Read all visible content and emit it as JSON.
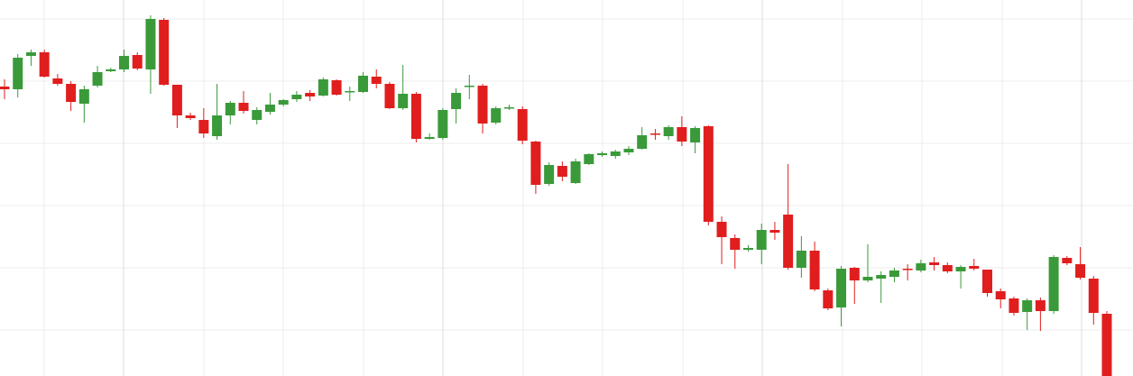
{
  "chart_data": {
    "type": "candlestick",
    "up_color": "#3a9a3a",
    "down_color": "#e01e1e",
    "ylim": [
      0,
      417
    ],
    "open": [
      321,
      318,
      355,
      359,
      330,
      324,
      302,
      322,
      338,
      340,
      356,
      340,
      395,
      323,
      289,
      284,
      266,
      289,
      303,
      284,
      293,
      301,
      307,
      314,
      311,
      328,
      315,
      315,
      332,
      324,
      297,
      313,
      263,
      264,
      296,
      321,
      322,
      281,
      297,
      296,
      260,
      213,
      233,
      214,
      235,
      245,
      244,
      248,
      252,
      269,
      266,
      276,
      259,
      277,
      171,
      153,
      140,
      140,
      162,
      179,
      120,
      139,
      95,
      76,
      120,
      106,
      108,
      110,
      119,
      117,
      126,
      123,
      116,
      122,
      118,
      94,
      86,
      71,
      84,
      72,
      131,
      124,
      108,
      69
    ],
    "high": [
      329,
      357,
      362,
      362,
      335,
      327,
      322,
      344,
      342,
      362,
      359,
      400,
      397,
      323,
      292,
      297,
      324,
      305,
      316,
      298,
      314,
      307,
      316,
      317,
      331,
      329,
      321,
      337,
      340,
      326,
      345,
      315,
      269,
      297,
      319,
      334,
      324,
      299,
      301,
      299,
      261,
      237,
      238,
      241,
      247,
      249,
      251,
      255,
      276,
      274,
      278,
      288,
      277,
      278,
      177,
      157,
      145,
      169,
      171,
      235,
      155,
      149,
      97,
      122,
      121,
      146,
      116,
      120,
      124,
      129,
      132,
      126,
      123,
      130,
      118,
      97,
      88,
      86,
      87,
      134,
      133,
      143,
      111,
      72
    ],
    "low": [
      307,
      309,
      344,
      331,
      322,
      294,
      281,
      320,
      337,
      337,
      339,
      313,
      322,
      275,
      284,
      264,
      262,
      279,
      291,
      279,
      290,
      299,
      304,
      305,
      310,
      311,
      305,
      314,
      319,
      296,
      295,
      259,
      262,
      262,
      280,
      307,
      269,
      279,
      295,
      257,
      202,
      211,
      216,
      213,
      234,
      243,
      241,
      245,
      251,
      262,
      262,
      255,
      247,
      167,
      124,
      119,
      138,
      124,
      151,
      118,
      109,
      94,
      73,
      55,
      80,
      104,
      81,
      104,
      106,
      115,
      117,
      114,
      97,
      117,
      88,
      75,
      67,
      51,
      50,
      69,
      123,
      107,
      57,
      0
    ],
    "close": [
      318,
      353,
      359,
      332,
      324,
      304,
      318,
      337,
      340,
      355,
      341,
      396,
      323,
      289,
      286,
      269,
      289,
      303,
      294,
      295,
      301,
      306,
      312,
      310,
      329,
      312,
      316,
      333,
      324,
      297,
      313,
      263,
      265,
      295,
      314,
      322,
      280,
      297,
      298,
      261,
      212,
      234,
      221,
      238,
      246,
      247,
      249,
      252,
      267,
      268,
      276,
      260,
      275,
      171,
      154,
      140,
      142,
      162,
      159,
      120,
      139,
      96,
      75,
      119,
      106,
      110,
      112,
      117,
      118,
      125,
      123,
      116,
      121,
      119,
      92,
      85,
      70,
      84,
      72,
      132,
      125,
      109,
      70,
      0
    ]
  }
}
